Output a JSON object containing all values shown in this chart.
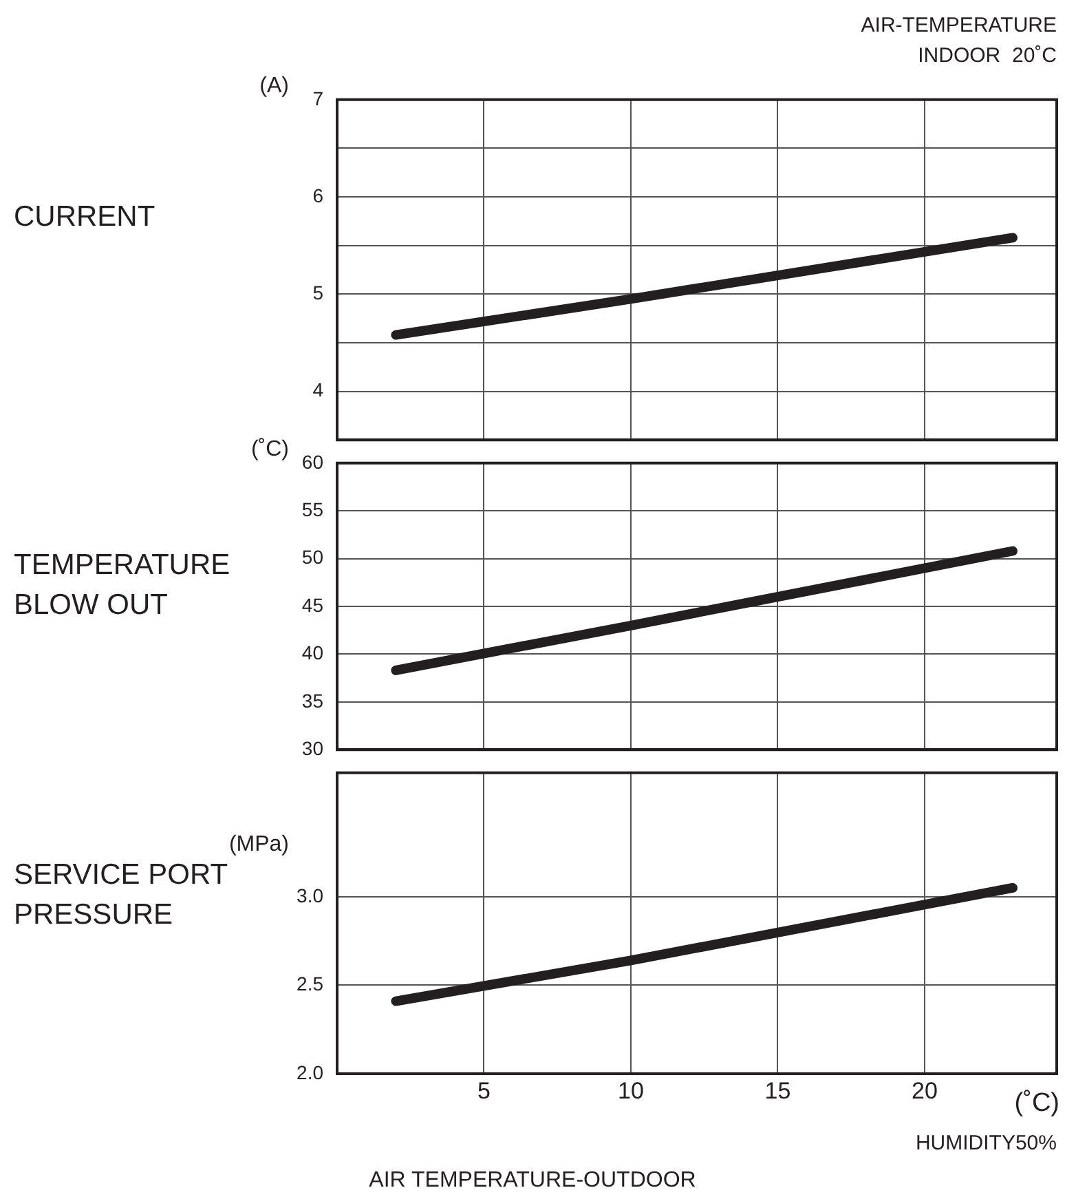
{
  "chart_data": [
    {
      "type": "line",
      "ylabel": "CURRENT",
      "annotations": [
        "(A)",
        "AIR-TEMPERATURE\nINDOOR  20˚C"
      ],
      "x": [
        2,
        10,
        23
      ],
      "series": [
        {
          "color": "#231f20",
          "values": [
            4.58,
            4.95,
            5.58
          ]
        }
      ],
      "xlim": [
        0,
        24.5
      ],
      "xticks": [
        5,
        10,
        15,
        20
      ],
      "ylim": [
        3.5,
        7
      ],
      "yticks": [
        4,
        {
          "value": 4.5,
          "label": null
        },
        5,
        {
          "value": 5.5,
          "label": null
        },
        6,
        {
          "value": 6.5,
          "label": null
        },
        7
      ],
      "grid": true,
      "marker": "none",
      "line_style": "solid",
      "tick_labels": "y"
    },
    {
      "type": "line",
      "ylabel": "TEMPERATURE BLOW OUT",
      "annotations": [
        "(˚C)"
      ],
      "x": [
        2,
        10,
        23
      ],
      "series": [
        {
          "color": "#231f20",
          "values": [
            38.3,
            43.0,
            50.8
          ]
        }
      ],
      "xlim": [
        0,
        24.5
      ],
      "xticks": [
        5,
        10,
        15,
        20
      ],
      "ylim": [
        30,
        60
      ],
      "yticks": [
        30,
        35,
        40,
        45,
        50,
        55,
        60
      ],
      "grid": true,
      "marker": "none",
      "line_style": "solid",
      "tick_labels": "y"
    },
    {
      "type": "line",
      "ylabel": "SERVICE PORT PRESSURE",
      "xlabel": "AIR  TEMPERATURE-OUTDOOR",
      "annotations": [
        "(MPa)",
        "(˚C)",
        "HUMIDITY50%"
      ],
      "x": [
        2,
        10,
        23
      ],
      "series": [
        {
          "color": "#231f20",
          "values": [
            2.41,
            2.64,
            3.05
          ]
        }
      ],
      "xlim": [
        0,
        24.5
      ],
      "xticks": [
        5,
        10,
        15,
        20
      ],
      "ylim": [
        2,
        3.7
      ],
      "yticks": [
        {
          "value": 2,
          "label": "2.0"
        },
        {
          "value": 2.5,
          "label": "2.5"
        },
        {
          "value": 3,
          "label": "3.0"
        }
      ],
      "grid": true,
      "marker": "none",
      "line_style": "solid"
    }
  ]
}
